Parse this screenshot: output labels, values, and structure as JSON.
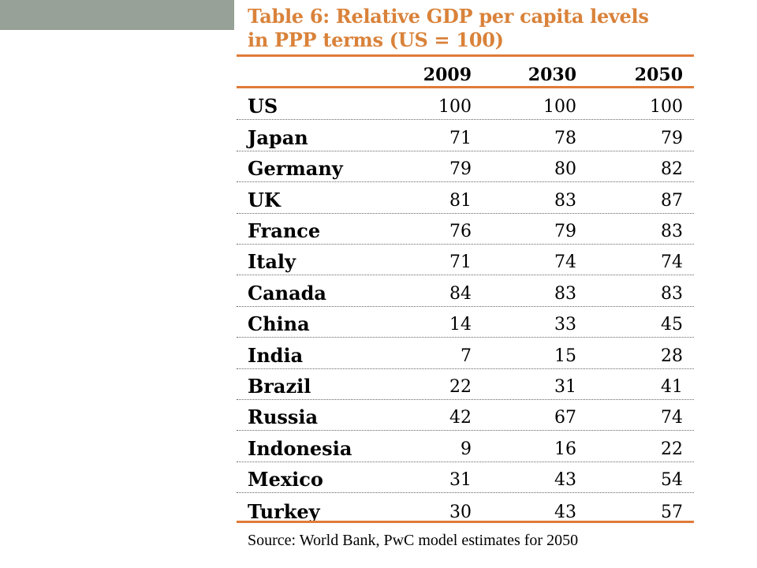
{
  "chart_data": {
    "type": "table",
    "title": "Table 6: Relative GDP per capita levels in PPP terms (US = 100)",
    "title_lines": [
      "Table 6: Relative GDP per capita levels",
      "in PPP terms (US = 100)"
    ],
    "columns": [
      "2009",
      "2030",
      "2050"
    ],
    "rows": [
      {
        "label": "US",
        "values": [
          100,
          100,
          100
        ]
      },
      {
        "label": "Japan",
        "values": [
          71,
          78,
          79
        ]
      },
      {
        "label": "Germany",
        "values": [
          79,
          80,
          82
        ]
      },
      {
        "label": "UK",
        "values": [
          81,
          83,
          87
        ]
      },
      {
        "label": "France",
        "values": [
          76,
          79,
          83
        ]
      },
      {
        "label": "Italy",
        "values": [
          71,
          74,
          74
        ]
      },
      {
        "label": "Canada",
        "values": [
          84,
          83,
          83
        ]
      },
      {
        "label": "China",
        "values": [
          14,
          33,
          45
        ]
      },
      {
        "label": "India",
        "values": [
          7,
          15,
          28
        ]
      },
      {
        "label": "Brazil",
        "values": [
          22,
          31,
          41
        ]
      },
      {
        "label": "Russia",
        "values": [
          42,
          67,
          74
        ]
      },
      {
        "label": "Indonesia",
        "values": [
          9,
          16,
          22
        ]
      },
      {
        "label": "Mexico",
        "values": [
          31,
          43,
          54
        ]
      },
      {
        "label": "Turkey",
        "values": [
          30,
          43,
          57
        ]
      }
    ],
    "source": "Source: World Bank, PwC model estimates for 2050"
  },
  "colors": {
    "title": "#d9823a",
    "rule": "#e07b39",
    "text": "#000000",
    "accent_block": "#97a197",
    "row_divider": "#666666"
  }
}
